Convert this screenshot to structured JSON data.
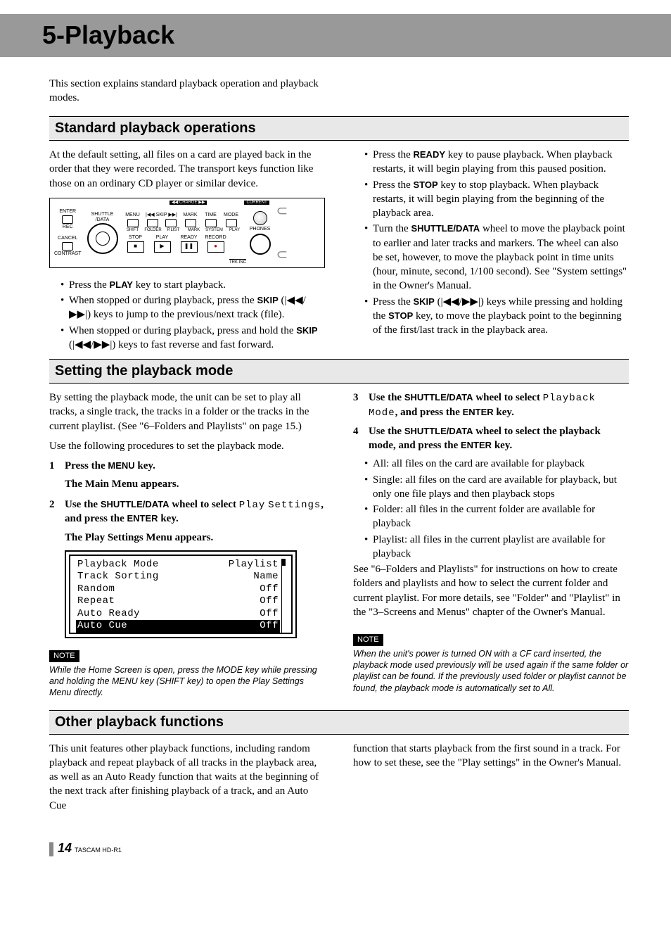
{
  "chapter_title": "5-Playback",
  "intro": "This section explains standard playback operation and playback modes.",
  "section1": {
    "title": "Standard playback operations",
    "lead": "At the default setting, all files on a card are played back in the order that they were recorded. The transport keys function like those on an ordinary CD player or similar device.",
    "left_bullets": {
      "b1a": "Press the ",
      "b1k": "PLAY",
      "b1b": " key to start playback.",
      "b2a": "When stopped or during playback, press the ",
      "b2k": "SKIP",
      "b2b": " (",
      "icons1": "|◀◀/▶▶|",
      "b2c": ") keys to jump to the previous/next track (file).",
      "b3a": "When stopped or during playback, press and hold the ",
      "b3k": "SKIP",
      "b3b": " (",
      "icons2": "|◀◀/▶▶|",
      "b3c": ") keys to fast reverse and fast forward."
    },
    "right_bullets": {
      "r1a": "Press the ",
      "r1k": "READY",
      "r1b": " key to pause playback. When playback restarts, it will begin playing from this paused position.",
      "r2a": "Press the ",
      "r2k": "STOP",
      "r2b": " key to stop playback. When playback restarts, it will begin playing from the beginning of the playback area.",
      "r3a": "Turn the ",
      "r3k": "SHUTTLE/DATA",
      "r3b": " wheel to move the playback point to earlier and later tracks and markers. The wheel can also be set, however, to move the playback point in time units (hour, minute, second, 1/100 second). See \"System settings\" in the Owner's Manual.",
      "r4a": "Press the ",
      "r4k": "SKIP",
      "r4b": " (",
      "icons3": "|◀◀/▶▶|",
      "r4c": ") keys while pressing and holding the ",
      "r4k2": "STOP",
      "r4d": " key, to move the playback point to the beginning of the first/last track in the playback area."
    },
    "device": {
      "enter": "ENTER",
      "rec": "REC",
      "cancel": "CANCEL",
      "contrast": "CONTRAST",
      "shuttle": "SHUTTLE\n/DATA",
      "charge": "◀◀ CHARGE ▶▶",
      "current": "CURRENT",
      "row1": [
        "MENU",
        "|◀◀ SKIP ▶▶|",
        "MARK",
        "TIME",
        "MODE"
      ],
      "row2": [
        "SHIFT",
        "FOLDER",
        "P.LIST",
        "MARK",
        "SYSTEM",
        "PLAY"
      ],
      "trans": [
        "STOP",
        "PLAY",
        "READY",
        "RECORD"
      ],
      "trans_sym": [
        "■",
        "▶",
        "❚❚",
        "●"
      ],
      "trk": "TRK INC",
      "phones": "PHONES"
    }
  },
  "section2": {
    "title": "Setting the playback mode",
    "lead": "By setting the playback mode, the unit can be set to play all tracks, a single track, the tracks in a folder or the tracks in the current playlist. (See \"6–Folders and Playlists\" on page 15.)",
    "lead2": "Use the following procedures to set the playback mode.",
    "steps_left": {
      "s1a": "Press the ",
      "s1k": "MENU",
      "s1b": " key.",
      "s1sub": "The Main Menu appears.",
      "s2a": "Use the ",
      "s2k": "SHUTTLE/DATA",
      "s2b": " wheel to select ",
      "s2m1": "Play",
      "s2m2": "Settings",
      "s2c": ", and press the ",
      "s2k2": "ENTER",
      "s2d": " key.",
      "s2sub": "The Play Settings Menu appears."
    },
    "menu": {
      "rows": [
        {
          "l": "Playback Mode",
          "r": "Playlist",
          "sel": false
        },
        {
          "l": "Track Sorting",
          "r": "Name",
          "sel": false
        },
        {
          "l": "Random",
          "r": "Off",
          "sel": false
        },
        {
          "l": "Repeat",
          "r": "Off",
          "sel": false
        },
        {
          "l": "Auto Ready",
          "r": "Off",
          "sel": false
        },
        {
          "l": "Auto Cue",
          "r": "Off",
          "sel": true
        }
      ]
    },
    "note_left": "While the Home Screen is open, press the MODE key while pressing and holding the MENU key (SHIFT key) to open the Play Settings Menu directly.",
    "steps_right": {
      "s3a": "Use the ",
      "s3k": "SHUTTLE/DATA",
      "s3b": " wheel to select ",
      "s3m": "Playback Mode",
      "s3c": ", and press the ",
      "s3k2": "ENTER",
      "s3d": " key.",
      "s4a": "Use the ",
      "s4k": "SHUTTLE/DATA",
      "s4b": " wheel to select the playback mode, and press the ",
      "s4k2": "ENTER",
      "s4c": " key."
    },
    "modes": {
      "m1": "All: all files on the card are available for playback",
      "m2": "Single: all files on the card are available for playback, but only one file plays and then playback stops",
      "m3": "Folder: all files in the current folder are available for playback",
      "m4": "Playlist: all files in the current playlist are available for playback"
    },
    "tail": "See \"6–Folders and Playlists\" for instructions on how to create folders and playlists and how to select the current folder and current playlist. For more details, see \"Folder\" and \"Playlist\" in the \"3–Screens and Menus\" chapter of the Owner's Manual.",
    "note_right": "When the unit's power is turned ON with a CF card inserted, the playback mode used previously will be used again if the same folder or playlist can be found. If the previously used folder or playlist cannot be found, the playback mode is automatically set to All.",
    "note_label": "NOTE"
  },
  "section3": {
    "title": "Other playback functions",
    "left": "This unit features other playback functions, including random playback and repeat playback of all tracks in the playback area, as well as an Auto Ready function that waits at the beginning of the next track after finishing playback of a track, and an Auto Cue",
    "right": "function that starts playback from the first sound in a track. For how to set these, see the \"Play settings\" in the Owner's Manual."
  },
  "footer": {
    "page": "14",
    "model": "TASCAM HD-R1"
  }
}
